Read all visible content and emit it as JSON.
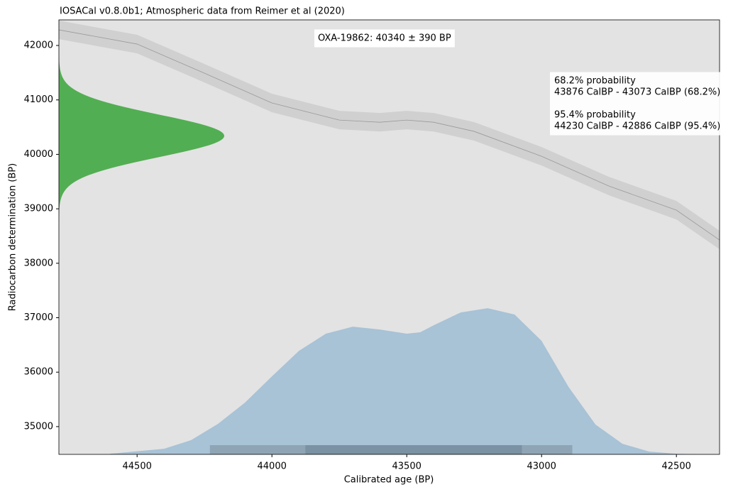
{
  "chart_data": {
    "type": "calibration",
    "title": "IOSACal v0.8.0b1; Atmospheric data from Reimer et al (2020)",
    "xlabel": "Calibrated age (BP)",
    "ylabel": "Radiocarbon determination (BP)",
    "xlim": [
      44790,
      42340
    ],
    "ylim": [
      34490,
      42470
    ],
    "xticks": [
      44500,
      44000,
      43500,
      43000,
      42500
    ],
    "yticks": [
      35000,
      36000,
      37000,
      38000,
      39000,
      40000,
      41000,
      42000
    ],
    "background": "#e3e3e3",
    "date_label": "OXA-19862: 40340 ± 390 BP",
    "summary": [
      [
        "68.2% probability",
        "43876 CalBP - 43073 CalBP (68.2%)"
      ],
      [
        "95.4% probability",
        "44230 CalBP - 42886 CalBP (95.4%)"
      ]
    ],
    "curve": {
      "x": [
        44790,
        44500,
        44250,
        44000,
        43750,
        43600,
        43500,
        43400,
        43250,
        43000,
        42750,
        42500,
        42340
      ],
      "values": [
        42287,
        42026,
        41490,
        40944,
        40630,
        40590,
        40630,
        40590,
        40422,
        39965,
        39417,
        38975,
        38427
      ],
      "sigma": 170,
      "color": "#999999",
      "band_color": "#d0d0d0"
    },
    "measurement": {
      "mean": 40340,
      "sigma": 390,
      "color": "#52ae52"
    },
    "density": {
      "x": [
        44600,
        44400,
        44300,
        44200,
        44100,
        44000,
        43900,
        43800,
        43700,
        43600,
        43500,
        43450,
        43400,
        43300,
        43200,
        43100,
        43000,
        42900,
        42800,
        42700,
        42600,
        42500,
        42400
      ],
      "values": [
        34502,
        34593,
        34750,
        35050,
        35440,
        35923,
        36390,
        36706,
        36836,
        36784,
        36706,
        36732,
        36862,
        37097,
        37175,
        37058,
        36575,
        35728,
        35037,
        34684,
        34540,
        34502,
        34490
      ],
      "color": "#a8c2d6"
    },
    "ranges": [
      {
        "from": 44230,
        "to": 42886,
        "color": "#8fa5b6"
      },
      {
        "from": 43876,
        "to": 43073,
        "color": "#7a92a3"
      }
    ]
  }
}
